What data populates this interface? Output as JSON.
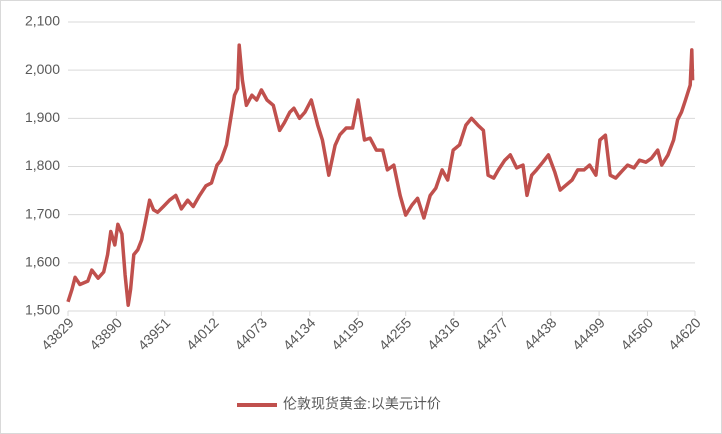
{
  "chart_data": {
    "type": "line",
    "x": [
      43829,
      43834,
      43838,
      43844,
      43854,
      43859,
      43867,
      43874,
      43879,
      43883,
      43888,
      43892,
      43897,
      43901,
      43905,
      43908,
      43912,
      43917,
      43922,
      43926,
      43932,
      43937,
      43942,
      43950,
      43957,
      43965,
      43972,
      43980,
      43987,
      43995,
      44003,
      44010,
      44017,
      44022,
      44029,
      44034,
      44039,
      44043,
      44045,
      44049,
      44054,
      44061,
      44067,
      44073,
      44080,
      44088,
      44096,
      44102,
      44109,
      44114,
      44121,
      44128,
      44136,
      44144,
      44150,
      44158,
      44166,
      44172,
      44180,
      44188,
      44195,
      44203,
      44210,
      44218,
      44226,
      44232,
      44240,
      44248,
      44255,
      44263,
      44270,
      44278,
      44286,
      44293,
      44301,
      44308,
      44315,
      44323,
      44331,
      44338,
      44346,
      44353,
      44359,
      44366,
      44372,
      44380,
      44387,
      44395,
      44403,
      44408,
      44414,
      44420,
      44428,
      44435,
      44443,
      44450,
      44457,
      44465,
      44472,
      44480,
      44487,
      44495,
      44500,
      44507,
      44513,
      44520,
      44527,
      44535,
      44543,
      44550,
      44558,
      44565,
      44573,
      44578,
      44586,
      44593,
      44598,
      44603,
      44608,
      44614,
      44616,
      44617
    ],
    "series": [
      {
        "name": "伦敦现货黄金:以美元计价",
        "color": "#c0504d",
        "values": [
          1519,
          1545,
          1570,
          1555,
          1562,
          1585,
          1568,
          1581,
          1617,
          1665,
          1637,
          1680,
          1660,
          1575,
          1512,
          1545,
          1617,
          1627,
          1648,
          1680,
          1730,
          1710,
          1705,
          1718,
          1730,
          1740,
          1712,
          1730,
          1717,
          1740,
          1760,
          1766,
          1803,
          1813,
          1845,
          1897,
          1948,
          1962,
          2052,
          1979,
          1927,
          1948,
          1938,
          1959,
          1938,
          1927,
          1875,
          1891,
          1913,
          1921,
          1900,
          1913,
          1938,
          1886,
          1855,
          1782,
          1844,
          1866,
          1880,
          1880,
          1938,
          1855,
          1859,
          1834,
          1834,
          1793,
          1803,
          1740,
          1699,
          1720,
          1734,
          1693,
          1740,
          1755,
          1793,
          1772,
          1834,
          1845,
          1886,
          1900,
          1886,
          1875,
          1782,
          1776,
          1793,
          1813,
          1824,
          1797,
          1803,
          1740,
          1782,
          1793,
          1809,
          1824,
          1789,
          1751,
          1761,
          1772,
          1793,
          1793,
          1803,
          1782,
          1855,
          1865,
          1782,
          1776,
          1789,
          1803,
          1797,
          1813,
          1809,
          1817,
          1834,
          1803,
          1824,
          1855,
          1897,
          1913,
          1938,
          1969,
          2042,
          1979
        ]
      }
    ],
    "xlim": [
      43829,
      44620
    ],
    "xticks": [
      43829,
      43890,
      43951,
      44012,
      44073,
      44134,
      44195,
      44255,
      44316,
      44377,
      44438,
      44499,
      44560,
      44620
    ],
    "ylim": [
      1500,
      2100
    ],
    "yticks": [
      {
        "value": 1500,
        "label": "1,500"
      },
      {
        "value": 1600,
        "label": "1,600"
      },
      {
        "value": 1700,
        "label": "1,700"
      },
      {
        "value": 1800,
        "label": "1,800"
      },
      {
        "value": 1900,
        "label": "1,900"
      },
      {
        "value": 2000,
        "label": "2,000"
      },
      {
        "value": 2100,
        "label": "2,100"
      }
    ],
    "grid": true,
    "legend": "bottom"
  }
}
